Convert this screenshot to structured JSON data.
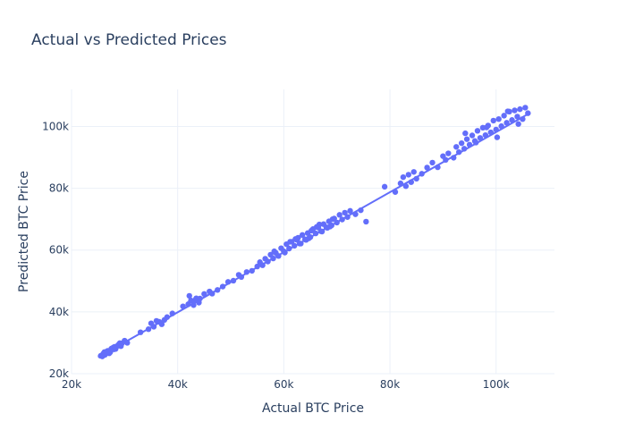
{
  "chart_data": {
    "type": "scatter",
    "title": "Actual vs Predicted Prices",
    "xlabel": "Actual BTC Price",
    "ylabel": "Predicted BTC Price",
    "xlim": [
      20000,
      111000
    ],
    "ylim": [
      20000,
      112000
    ],
    "x_ticks": [
      {
        "value": 20000,
        "label": "20k"
      },
      {
        "value": 40000,
        "label": "40k"
      },
      {
        "value": 60000,
        "label": "60k"
      },
      {
        "value": 80000,
        "label": "80k"
      },
      {
        "value": 100000,
        "label": "100k"
      }
    ],
    "y_ticks": [
      {
        "value": 20000,
        "label": "20k"
      },
      {
        "value": 40000,
        "label": "40k"
      },
      {
        "value": 60000,
        "label": "60k"
      },
      {
        "value": 80000,
        "label": "80k"
      },
      {
        "value": 100000,
        "label": "100k"
      }
    ],
    "grid": true,
    "legend": "none",
    "marker_color": "#636efa",
    "trend_line": {
      "x": [
        25000,
        106000
      ],
      "y": [
        25300,
        104000
      ]
    },
    "points": {
      "x": [
        25500,
        26000,
        26500,
        27000,
        27500,
        28000,
        28500,
        29000,
        29500,
        30000,
        25800,
        26300,
        26800,
        27300,
        27800,
        28300,
        28800,
        29300,
        26200,
        27100,
        28100,
        29100,
        30500,
        33000,
        34500,
        35000,
        35500,
        36000,
        36500,
        37000,
        37500,
        38000,
        39000,
        41000,
        42000,
        42500,
        43000,
        43500,
        44000,
        42200,
        43200,
        44200,
        45000,
        46000,
        46500,
        47500,
        48500,
        49500,
        50500,
        51500,
        52000,
        53000,
        54000,
        55000,
        55500,
        56000,
        56500,
        57000,
        57500,
        58000,
        58500,
        59000,
        59500,
        60000,
        60500,
        61000,
        61500,
        62000,
        62500,
        63000,
        63500,
        64000,
        64500,
        65000,
        65500,
        66000,
        66500,
        67000,
        67500,
        68000,
        68500,
        69000,
        69500,
        70000,
        70500,
        71000,
        71500,
        72000,
        72500,
        73500,
        74500,
        58200,
        60200,
        62200,
        64200,
        66200,
        68200,
        61200,
        63200,
        65200,
        67200,
        69200,
        62700,
        64700,
        66700,
        68700,
        75500,
        79000,
        81000,
        82000,
        82500,
        83000,
        83500,
        84000,
        84500,
        85000,
        86000,
        87000,
        88000,
        89000,
        90000,
        90500,
        91000,
        92000,
        92500,
        93000,
        93500,
        94000,
        94500,
        95000,
        95500,
        96000,
        96500,
        97000,
        97500,
        98000,
        98500,
        99000,
        99500,
        100000,
        100500,
        101000,
        101500,
        102000,
        102500,
        103000,
        103500,
        104000,
        104500,
        105000,
        105500,
        106000,
        94200,
        96200,
        98200,
        100200,
        102200,
        104200
      ],
      "y": [
        25800,
        26500,
        27000,
        27200,
        28100,
        27900,
        28800,
        29600,
        29800,
        30700,
        25600,
        26100,
        27400,
        27000,
        28400,
        28000,
        29300,
        28900,
        27000,
        26600,
        28700,
        29900,
        30000,
        33400,
        34400,
        36300,
        35200,
        37100,
        36800,
        36000,
        37400,
        38300,
        39500,
        41800,
        42500,
        43700,
        42200,
        44400,
        43000,
        45200,
        43700,
        44300,
        45800,
        46600,
        45900,
        47100,
        48200,
        49700,
        50100,
        52000,
        51300,
        52900,
        53300,
        54700,
        56100,
        55100,
        57200,
        56300,
        58500,
        57300,
        59100,
        58100,
        60600,
        59600,
        61900,
        60500,
        62700,
        61400,
        63300,
        62100,
        64900,
        63500,
        65500,
        64200,
        66800,
        65400,
        67300,
        66100,
        68400,
        67400,
        69300,
        68000,
        70200,
        68900,
        71400,
        69900,
        72100,
        70700,
        72700,
        71600,
        72900,
        59600,
        59200,
        63600,
        63300,
        67500,
        67200,
        62700,
        62100,
        66300,
        66000,
        70000,
        64000,
        63800,
        68300,
        67600,
        69200,
        80500,
        78800,
        81600,
        83600,
        80700,
        84400,
        82000,
        85300,
        83100,
        84700,
        86700,
        88300,
        86800,
        90400,
        89200,
        91300,
        89900,
        93400,
        91700,
        94600,
        92800,
        95900,
        94100,
        97100,
        95300,
        98600,
        96300,
        99600,
        97200,
        100300,
        98100,
        101900,
        99000,
        102400,
        100100,
        103500,
        101200,
        104800,
        102100,
        105200,
        103200,
        105600,
        102400,
        106100,
        104300,
        97800,
        94800,
        99700,
        96500,
        104900,
        100800
      ]
    }
  }
}
